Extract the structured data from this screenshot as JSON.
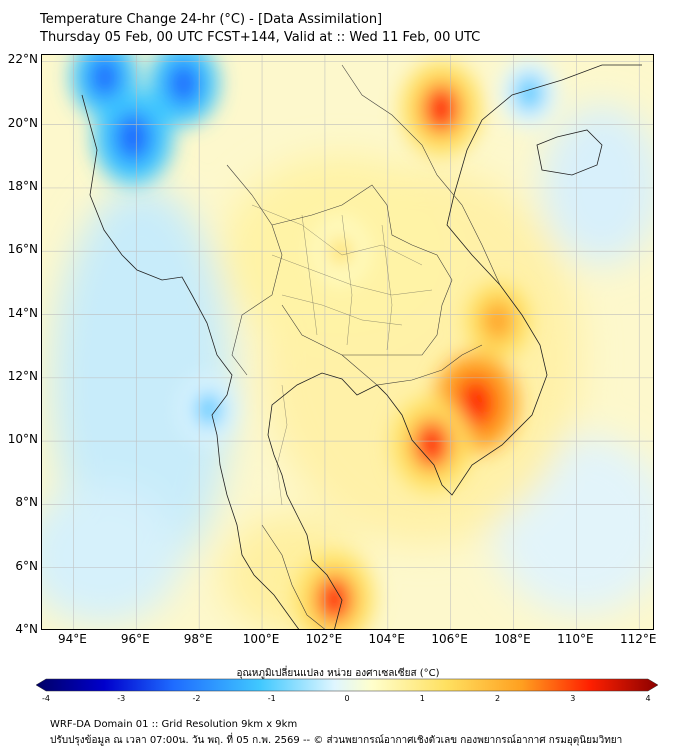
{
  "header": {
    "title_line1": "Temperature Change 24-hr (°C) - [Data Assimilation]",
    "title_line2": "Thursday 05 Feb, 00 UTC FCST+144, Valid at :: Wed 11 Feb, 00 UTC"
  },
  "map": {
    "lat_labels": [
      "22°N",
      "20°N",
      "18°N",
      "16°N",
      "14°N",
      "12°N",
      "10°N",
      "8°N",
      "6°N",
      "4°N"
    ],
    "lon_labels": [
      "94°E",
      "96°E",
      "98°E",
      "100°E",
      "102°E",
      "104°E",
      "106°E",
      "108°E",
      "110°E",
      "112°E"
    ],
    "lon_range": [
      93,
      112.5
    ],
    "lat_range": [
      4,
      22.2
    ],
    "features": {
      "cold_anomalies": [
        {
          "name": "myanmar-west-cold",
          "lon": 95.9,
          "lat": 19.6,
          "value": -2.6
        },
        {
          "name": "myanmar-north-cold",
          "lon": 97.5,
          "lat": 21.3,
          "value": -2.0
        },
        {
          "name": "myanmar-center-cold",
          "lon": 95.0,
          "lat": 21.5,
          "value": -1.8
        },
        {
          "name": "gulf-tonkin-cold",
          "lon": 108.5,
          "lat": 21.0,
          "value": -1.2
        },
        {
          "name": "andaman-cold",
          "lon": 98.3,
          "lat": 11.0,
          "value": -1.0
        }
      ],
      "warm_anomalies": [
        {
          "name": "northern-vietnam-warm",
          "lon": 105.7,
          "lat": 20.5,
          "value": 3.2
        },
        {
          "name": "southern-vietnam-warm",
          "lon": 106.8,
          "lat": 11.2,
          "value": 3.4
        },
        {
          "name": "mekong-delta-warm",
          "lon": 105.4,
          "lat": 9.9,
          "value": 3.1
        },
        {
          "name": "malay-peninsula-warm",
          "lon": 102.3,
          "lat": 5.0,
          "value": 3.0
        },
        {
          "name": "central-vietnam-warm",
          "lon": 107.5,
          "lat": 13.8,
          "value": 2.0
        },
        {
          "name": "thailand-warm",
          "lon": 102.5,
          "lat": 16.0,
          "value": 1.2
        }
      ]
    }
  },
  "colorbar": {
    "label": "อุณหภูมิเปลี่ยนแปลง หน่วย องศาเซลเซียส (°C)",
    "ticks": [
      "-4",
      "-3",
      "-2",
      "-1",
      "0",
      "1",
      "2",
      "3",
      "4"
    ],
    "range": [
      -4,
      4
    ],
    "colors": [
      "#000066",
      "#0000cc",
      "#1e6bff",
      "#40c8ff",
      "#dff6ff",
      "#ffffcc",
      "#ffe060",
      "#ffa020",
      "#ff2000",
      "#8b0000"
    ]
  },
  "footer": {
    "line1": "WRF-DA Domain 01 :: Grid Resolution 9km x 9km",
    "line2": "ปรับปรุงข้อมูล ณ เวลา 07:00น. วัน พฤ. ที่ 05 ก.พ. 2569 -- © ส่วนพยากรณ์อากาศเชิงตัวเลข กองพยากรณ์อากาศ กรมอุตุนิยมวิทยา"
  }
}
